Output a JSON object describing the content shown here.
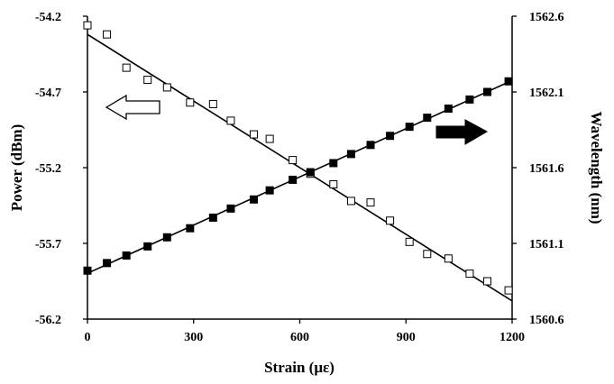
{
  "chart_data": {
    "type": "scatter",
    "title": "",
    "xlabel": "Strain (με)",
    "ylabel_left": "Power (dBm)",
    "ylabel_right": "Wavelength (nm)",
    "xlim": [
      0,
      1200
    ],
    "ylim_left": [
      -56.2,
      -54.2
    ],
    "ylim_right": [
      1560.6,
      1562.6
    ],
    "x_ticks": [
      "0",
      "300",
      "600",
      "900",
      "1200"
    ],
    "y_left_ticks": [
      "-54.2",
      "-54.7",
      "-55.2",
      "-55.7",
      "-56.2"
    ],
    "y_right_ticks": [
      "1562.6",
      "1562.1",
      "1561.6",
      "1561.1",
      "1560.6"
    ],
    "grid": false,
    "series": [
      {
        "axis": "left",
        "marker": "open-square",
        "x": [
          0,
          55,
          110,
          170,
          225,
          290,
          355,
          405,
          470,
          515,
          580,
          630,
          695,
          745,
          800,
          855,
          910,
          960,
          1020,
          1080,
          1130,
          1190
        ],
        "y": [
          -54.26,
          -54.32,
          -54.54,
          -54.62,
          -54.67,
          -54.77,
          -54.78,
          -54.89,
          -54.98,
          -55.01,
          -55.15,
          -55.24,
          -55.31,
          -55.42,
          -55.43,
          -55.55,
          -55.69,
          -55.77,
          -55.8,
          -55.9,
          -55.95,
          -56.01
        ],
        "fit": [
          [
            0,
            -54.32
          ],
          [
            1200,
            -56.08
          ]
        ]
      },
      {
        "axis": "right",
        "marker": "filled-square",
        "x": [
          0,
          55,
          110,
          170,
          225,
          290,
          355,
          405,
          470,
          515,
          580,
          630,
          695,
          745,
          800,
          855,
          910,
          960,
          1020,
          1080,
          1130,
          1190
        ],
        "y": [
          1560.92,
          1560.97,
          1561.02,
          1561.08,
          1561.14,
          1561.2,
          1561.27,
          1561.33,
          1561.39,
          1561.45,
          1561.52,
          1561.57,
          1561.63,
          1561.69,
          1561.75,
          1561.81,
          1561.87,
          1561.93,
          1561.99,
          1562.05,
          1562.1,
          1562.17
        ]
      }
    ]
  }
}
